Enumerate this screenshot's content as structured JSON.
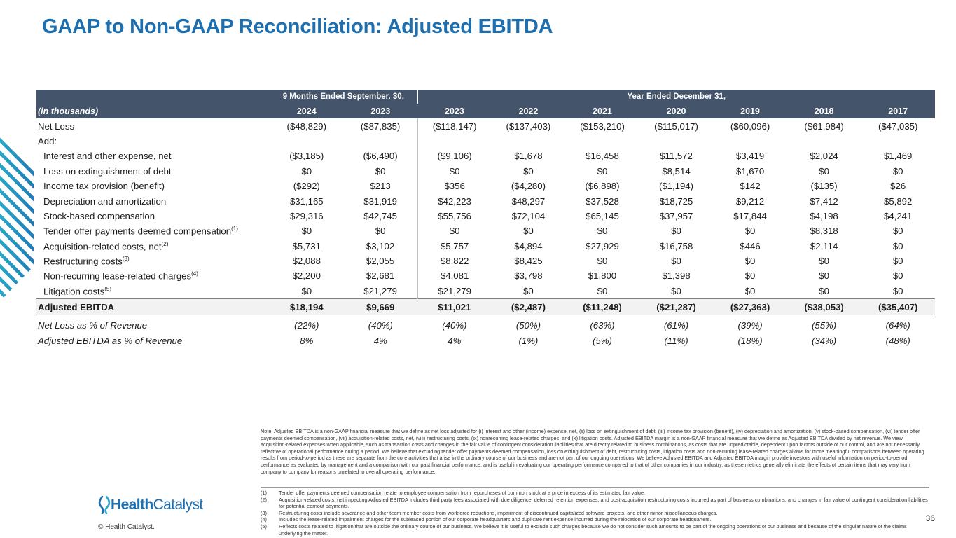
{
  "title": "GAAP to Non-GAAP Reconciliation: Adjusted EBITDA",
  "table": {
    "group_headers": [
      {
        "label": "9 Months Ended September. 30,",
        "span": 2
      },
      {
        "label": "Year Ended December 31,",
        "span": 7
      }
    ],
    "unit_label": "(in thousands)",
    "columns": [
      "2024",
      "2023",
      "2023",
      "2022",
      "2021",
      "2020",
      "2019",
      "2018",
      "2017"
    ],
    "net_loss": {
      "label": "Net Loss",
      "values": [
        "($48,829)",
        "($87,835)",
        "($118,147)",
        "($137,403)",
        "($153,210)",
        "($115,017)",
        "($60,096)",
        "($61,984)",
        "($47,035)"
      ]
    },
    "add_label": "Add:",
    "additions": [
      {
        "label": "Interest and other expense, net",
        "values": [
          "($3,185)",
          "($6,490)",
          "($9,106)",
          "$1,678",
          "$16,458",
          "$11,572",
          "$3,419",
          "$2,024",
          "$1,469"
        ]
      },
      {
        "label": "Loss on extinguishment of debt",
        "values": [
          "$0",
          "$0",
          "$0",
          "$0",
          "$0",
          "$8,514",
          "$1,670",
          "$0",
          "$0"
        ]
      },
      {
        "label": "Income tax provision (benefit)",
        "values": [
          "($292)",
          "$213",
          "$356",
          "($4,280)",
          "($6,898)",
          "($1,194)",
          "$142",
          "($135)",
          "$26"
        ]
      },
      {
        "label": "Depreciation and amortization",
        "values": [
          "$31,165",
          "$31,919",
          "$42,223",
          "$48,297",
          "$37,528",
          "$18,725",
          "$9,212",
          "$7,412",
          "$5,892"
        ]
      },
      {
        "label": "Stock-based compensation",
        "values": [
          "$29,316",
          "$42,745",
          "$55,756",
          "$72,104",
          "$65,145",
          "$37,957",
          "$17,844",
          "$4,198",
          "$4,241"
        ]
      },
      {
        "label": "Tender offer payments deemed compensation",
        "note": "(1)",
        "values": [
          "$0",
          "$0",
          "$0",
          "$0",
          "$0",
          "$0",
          "$0",
          "$8,318",
          "$0"
        ]
      },
      {
        "label": "Acquisition-related costs, net",
        "note": "(2)",
        "values": [
          "$5,731",
          "$3,102",
          "$5,757",
          "$4,894",
          "$27,929",
          "$16,758",
          "$446",
          "$2,114",
          "$0"
        ]
      },
      {
        "label": "Restructuring costs",
        "note": "(3)",
        "values": [
          "$2,088",
          "$2,055",
          "$8,822",
          "$8,425",
          "$0",
          "$0",
          "$0",
          "$0",
          "$0"
        ]
      },
      {
        "label": "Non-recurring lease-related charges",
        "note": "(4)",
        "values": [
          "$2,200",
          "$2,681",
          "$4,081",
          "$3,798",
          "$1,800",
          "$1,398",
          "$0",
          "$0",
          "$0"
        ]
      },
      {
        "label": "Litigation costs",
        "note": "(5)",
        "values": [
          "$0",
          "$21,279",
          "$21,279",
          "$0",
          "$0",
          "$0",
          "$0",
          "$0",
          "$0"
        ]
      }
    ],
    "total": {
      "label": "Adjusted EBITDA",
      "values": [
        "$18,194",
        "$9,669",
        "$11,021",
        "($2,487)",
        "($11,248)",
        "($21,287)",
        "($27,363)",
        "($38,053)",
        "($35,407)"
      ]
    },
    "ratios": [
      {
        "label": "Net Loss as % of Revenue",
        "values": [
          "(22%)",
          "(40%)",
          "(40%)",
          "(50%)",
          "(63%)",
          "(61%)",
          "(39%)",
          "(55%)",
          "(64%)"
        ]
      },
      {
        "label": "Adjusted EBITDA as % of Revenue",
        "values": [
          "8%",
          "4%",
          "4%",
          "(1%)",
          "(5%)",
          "(11%)",
          "(18%)",
          "(34%)",
          "(48%)"
        ]
      }
    ]
  },
  "note": "Note: Adjusted EBITDA is a non-GAAP financial measure that we define as net loss adjusted for (i) interest and other (income) expense, net, (ii) loss on extinguishment of debt, (iii) income tax provision (benefit), (iv) depreciation and amortization, (v) stock-based compensation, (vi) tender offer payments deemed compensation, (vii) acquisition-related costs, net, (viii) restructuring costs, (ix) nonrecurring lease-related charges, and (x) litigation costs. Adjusted EBITDA margin is a non-GAAP financial measure that we define as Adjusted EBITDA divided by net revenue. We view acquisition-related expenses when applicable, such as transaction costs and changes in the fair value of contingent consideration liabilities that are directly related to business combinations, as costs that are unpredictable, dependent upon factors outside of our control, and are not necessarily reflective of operational performance during a period. We believe that excluding tender offer payments deemed compensation, loss on extinguishment of debt, restructuring costs, litigation costs and non-recurring lease-related charges allows for more meaningful comparisons between operating results from period-to-period as these are separate from the core activities that arise in the ordinary course of our business and are not part of our ongoing operations. We believe Adjusted EBITDA and Adjusted EBITDA margin provide investors with useful information on period-to-period performance as evaluated by management and a comparison with our past financial performance, and is useful in evaluating our operating performance compared to that of other companies in our industry, as these metrics generally eliminate the effects of certain items that may vary from company to company for reasons unrelated to overall operating performance.",
  "footnotes": [
    {
      "marker": "(1)",
      "text": "Tender offer payments deemed compensation relate to employee compensation from repurchases of common stock at a price in excess of its estimated fair value."
    },
    {
      "marker": "(2)",
      "text": "Acquisition-related costs, net impacting Adjusted EBITDA includes third party fees associated with due diligence, deferred retention expenses, and post-acquisition restructuring costs incurred as part of business combinations, and changes in fair value of contingent consideration liabilities for potential earnout payments."
    },
    {
      "marker": "(3)",
      "text": "Restructuring costs include severance and other team member costs from workforce reductions, impairment of discontinued capitalized software projects, and other minor miscellaneous charges."
    },
    {
      "marker": "(4)",
      "text": "Includes the lease-related impairment charges for the subleased portion of our corporate headquarters and duplicate rent expense incurred during the relocation of our corporate headquarters."
    },
    {
      "marker": "(5)",
      "text": "Reflects costs related to litigation that are outside the ordinary course of our business. We believe it is useful to exclude such charges because we do not consider such amounts to be part of the ongoing operations of our business and because of the singular nature of the claims underlying the matter."
    }
  ],
  "logo": {
    "first": "Health",
    "second": "Catalyst"
  },
  "copyright": "© Health Catalyst.",
  "page_number": "36"
}
